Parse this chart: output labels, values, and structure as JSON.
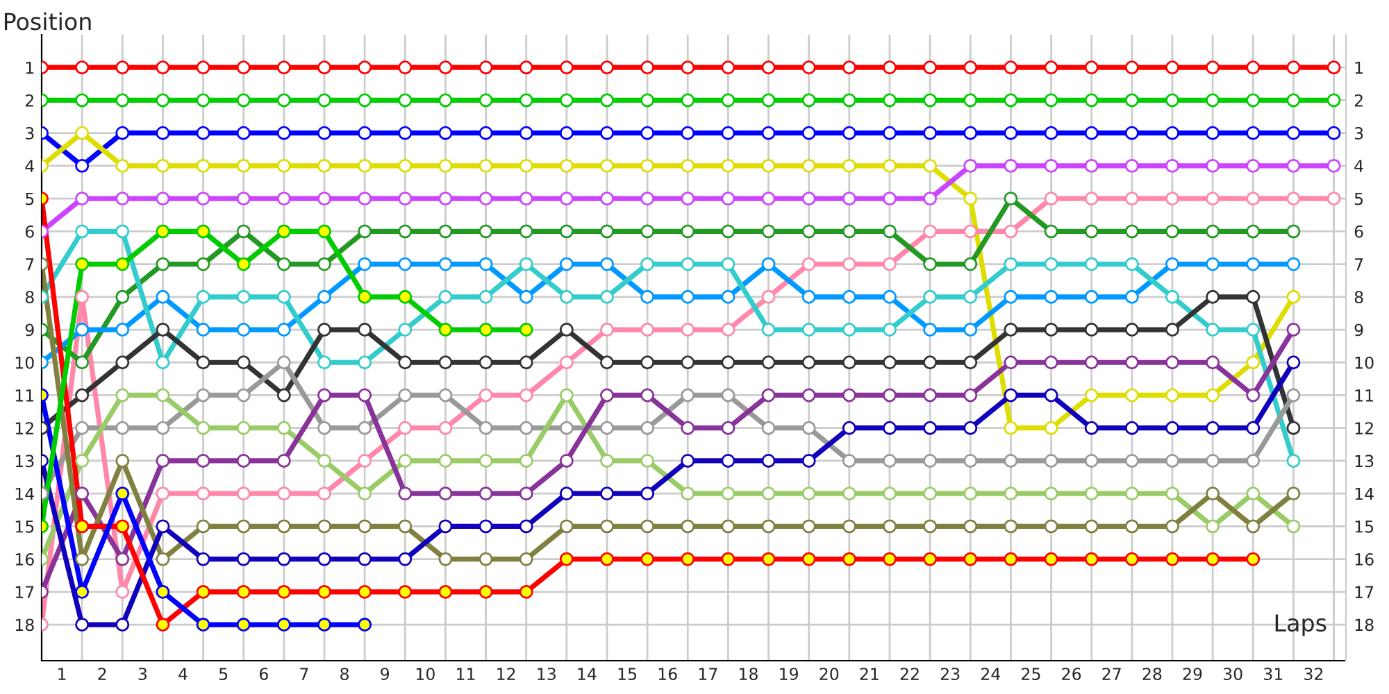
{
  "chart_data": {
    "type": "line",
    "xlabel": "Laps",
    "ylabel": "Position",
    "grid": true,
    "marker": "circle",
    "x": [
      0,
      1,
      2,
      3,
      4,
      5,
      6,
      7,
      8,
      9,
      10,
      11,
      12,
      13,
      14,
      15,
      16,
      17,
      18,
      19,
      20,
      21,
      22,
      23,
      24,
      25,
      26,
      27,
      28,
      29,
      30,
      31,
      32
    ],
    "xlim": [
      0,
      32.3
    ],
    "xticks": [
      {
        "value": 0.5,
        "label": "1"
      },
      {
        "value": 1.5,
        "label": "2"
      },
      {
        "value": 2.5,
        "label": "3"
      },
      {
        "value": 3.5,
        "label": "4"
      },
      {
        "value": 4.5,
        "label": "5"
      },
      {
        "value": 5.5,
        "label": "6"
      },
      {
        "value": 6.5,
        "label": "7"
      },
      {
        "value": 7.5,
        "label": "8"
      },
      {
        "value": 8.5,
        "label": "9"
      },
      {
        "value": 9.5,
        "label": "10"
      },
      {
        "value": 10.5,
        "label": "11"
      },
      {
        "value": 11.5,
        "label": "12"
      },
      {
        "value": 12.5,
        "label": "13"
      },
      {
        "value": 13.5,
        "label": "14"
      },
      {
        "value": 14.5,
        "label": "15"
      },
      {
        "value": 15.5,
        "label": "16"
      },
      {
        "value": 16.5,
        "label": "17"
      },
      {
        "value": 17.5,
        "label": "18"
      },
      {
        "value": 18.5,
        "label": "19"
      },
      {
        "value": 19.5,
        "label": "20"
      },
      {
        "value": 20.5,
        "label": "21"
      },
      {
        "value": 21.5,
        "label": "22"
      },
      {
        "value": 22.5,
        "label": "23"
      },
      {
        "value": 23.5,
        "label": "24"
      },
      {
        "value": 24.5,
        "label": "25"
      },
      {
        "value": 25.5,
        "label": "26"
      },
      {
        "value": 26.5,
        "label": "27"
      },
      {
        "value": 27.5,
        "label": "28"
      },
      {
        "value": 28.5,
        "label": "29"
      },
      {
        "value": 29.5,
        "label": "30"
      },
      {
        "value": 30.5,
        "label": "31"
      },
      {
        "value": 31.5,
        "label": "32"
      }
    ],
    "ylim": [
      19.1,
      0
    ],
    "yticks": [
      1,
      2,
      3,
      4,
      5,
      6,
      7,
      8,
      9,
      10,
      11,
      12,
      13,
      14,
      15,
      16,
      17,
      18
    ],
    "y2lim": [
      19.1,
      0
    ],
    "y2ticks": [
      1,
      2,
      3,
      4,
      5,
      6,
      7,
      8,
      9,
      10,
      11,
      12,
      13,
      14,
      15,
      16,
      17,
      18
    ],
    "series": [
      {
        "color": "#ff0000",
        "values": [
          1,
          1,
          1,
          1,
          1,
          1,
          1,
          1,
          1,
          1,
          1,
          1,
          1,
          1,
          1,
          1,
          1,
          1,
          1,
          1,
          1,
          1,
          1,
          1,
          1,
          1,
          1,
          1,
          1,
          1,
          1,
          1,
          1
        ]
      },
      {
        "color": "#00cc00",
        "values": [
          2,
          2,
          2,
          2,
          2,
          2,
          2,
          2,
          2,
          2,
          2,
          2,
          2,
          2,
          2,
          2,
          2,
          2,
          2,
          2,
          2,
          2,
          2,
          2,
          2,
          2,
          2,
          2,
          2,
          2,
          2,
          2,
          2
        ]
      },
      {
        "color": "#0000ff",
        "values": [
          3,
          4,
          3,
          3,
          3,
          3,
          3,
          3,
          3,
          3,
          3,
          3,
          3,
          3,
          3,
          3,
          3,
          3,
          3,
          3,
          3,
          3,
          3,
          3,
          3,
          3,
          3,
          3,
          3,
          3,
          3,
          3,
          3
        ]
      },
      {
        "color": "#dddd00",
        "values": [
          4,
          3,
          4,
          4,
          4,
          4,
          4,
          4,
          4,
          4,
          4,
          4,
          4,
          4,
          4,
          4,
          4,
          4,
          4,
          4,
          4,
          4,
          4,
          5,
          12,
          12,
          11,
          11,
          11,
          11,
          10,
          8,
          null
        ]
      },
      {
        "color": "#cc44ff",
        "values": [
          6,
          5,
          5,
          5,
          5,
          5,
          5,
          5,
          5,
          5,
          5,
          5,
          5,
          5,
          5,
          5,
          5,
          5,
          5,
          5,
          5,
          5,
          5,
          4,
          4,
          4,
          4,
          4,
          4,
          4,
          4,
          4,
          4
        ]
      },
      {
        "color": "#ff88aa",
        "values": [
          18,
          8,
          17,
          14,
          14,
          14,
          14,
          14,
          13,
          12,
          12,
          11,
          11,
          10,
          9,
          9,
          9,
          9,
          8,
          7,
          7,
          7,
          6,
          6,
          6,
          5,
          5,
          5,
          5,
          5,
          5,
          5,
          5
        ]
      },
      {
        "color": "#229922",
        "values": [
          9,
          10,
          8,
          7,
          7,
          6,
          7,
          7,
          6,
          6,
          6,
          6,
          6,
          6,
          6,
          6,
          6,
          6,
          6,
          6,
          6,
          6,
          7,
          7,
          5,
          6,
          6,
          6,
          6,
          6,
          6,
          6,
          null
        ]
      },
      {
        "color": "#0099ff",
        "values": [
          10,
          9,
          9,
          8,
          9,
          9,
          9,
          8,
          7,
          7,
          7,
          7,
          8,
          7,
          7,
          8,
          8,
          8,
          7,
          8,
          8,
          8,
          9,
          9,
          8,
          8,
          8,
          8,
          7,
          7,
          7,
          7,
          null
        ]
      },
      {
        "color": "#33cccc",
        "values": [
          8,
          6,
          6,
          10,
          8,
          8,
          8,
          10,
          10,
          9,
          8,
          8,
          7,
          8,
          8,
          7,
          7,
          7,
          9,
          9,
          9,
          9,
          8,
          8,
          7,
          7,
          7,
          7,
          8,
          9,
          9,
          13,
          null
        ]
      },
      {
        "color": "#333333",
        "values": [
          12,
          11,
          10,
          9,
          10,
          10,
          11,
          9,
          9,
          10,
          10,
          10,
          10,
          9,
          10,
          10,
          10,
          10,
          10,
          10,
          10,
          10,
          10,
          10,
          9,
          9,
          9,
          9,
          9,
          8,
          8,
          12,
          null
        ]
      },
      {
        "color": "#999999",
        "values": [
          14,
          12,
          12,
          12,
          11,
          11,
          10,
          12,
          12,
          11,
          11,
          12,
          12,
          12,
          12,
          12,
          11,
          11,
          12,
          12,
          13,
          13,
          13,
          13,
          13,
          13,
          13,
          13,
          13,
          13,
          13,
          11,
          null
        ]
      },
      {
        "color": "#99cc66",
        "values": [
          16,
          13,
          11,
          11,
          12,
          12,
          12,
          13,
          14,
          13,
          13,
          13,
          13,
          11,
          13,
          13,
          14,
          14,
          14,
          14,
          14,
          14,
          14,
          14,
          14,
          14,
          14,
          14,
          14,
          15,
          14,
          15,
          null
        ]
      },
      {
        "color": "#883399",
        "values": [
          17,
          14,
          16,
          13,
          13,
          13,
          13,
          11,
          11,
          14,
          14,
          14,
          14,
          13,
          11,
          11,
          12,
          12,
          11,
          11,
          11,
          11,
          11,
          11,
          10,
          10,
          10,
          10,
          10,
          10,
          11,
          9,
          null
        ]
      },
      {
        "color": "#808040",
        "values": [
          7,
          16,
          13,
          16,
          15,
          15,
          15,
          15,
          15,
          15,
          16,
          16,
          16,
          15,
          15,
          15,
          15,
          15,
          15,
          15,
          15,
          15,
          15,
          15,
          15,
          15,
          15,
          15,
          15,
          14,
          15,
          14,
          null
        ]
      },
      {
        "color": "#1100bb",
        "values": [
          13,
          18,
          18,
          15,
          16,
          16,
          16,
          16,
          16,
          16,
          15,
          15,
          15,
          14,
          14,
          14,
          13,
          13,
          13,
          13,
          12,
          12,
          12,
          12,
          11,
          11,
          12,
          12,
          12,
          12,
          12,
          10,
          null
        ]
      },
      {
        "color": "#ff0000",
        "values": [
          5,
          15,
          15,
          18,
          17,
          17,
          17,
          17,
          17,
          17,
          17,
          17,
          17,
          16,
          16,
          16,
          16,
          16,
          16,
          16,
          16,
          16,
          16,
          16,
          16,
          16,
          16,
          16,
          16,
          16,
          16,
          null,
          null
        ],
        "colors": [
          "#ffff00",
          "#ffff00",
          "#ffff00",
          "#ffff00",
          "#ffff00",
          "#ffff00",
          "#ffff00",
          "#ffff00",
          "#ffff00",
          "#ffff00",
          "#ffff00",
          "#ffff00",
          "#ffff00",
          "#ffff00",
          "#ffff00",
          "#ffff00",
          "#ffff00",
          "#ffff00",
          "#ffff00",
          "#ffff00",
          "#ffff00",
          "#ffff00",
          "#ffff00",
          "#ffff00",
          "#ffff00",
          "#ffff00",
          "#ffff00",
          "#ffff00",
          "#ffff00",
          "#ffff00",
          "#ffff00",
          null,
          null
        ]
      },
      {
        "color": "#0000ff",
        "values": [
          11,
          17,
          14,
          17,
          18,
          18,
          18,
          18,
          18,
          null,
          null,
          null,
          null,
          null,
          null,
          null,
          null,
          null,
          null,
          null,
          null,
          null,
          null,
          null,
          null,
          null,
          null,
          null,
          null,
          null,
          null,
          null,
          null
        ],
        "colors": [
          "#ffff00",
          "#ffff00",
          "#ffff00",
          "#ffff00",
          "#ffff00",
          "#ffff00",
          "#ffff00",
          "#ffff00",
          "#ffff00",
          null,
          null,
          null,
          null,
          null,
          null,
          null,
          null,
          null,
          null,
          null,
          null,
          null,
          null,
          null,
          null,
          null,
          null,
          null,
          null,
          null,
          null,
          null,
          null
        ]
      },
      {
        "color": "#00cc00",
        "values": [
          15,
          7,
          7,
          6,
          6,
          7,
          6,
          6,
          8,
          8,
          9,
          9,
          9,
          null,
          null,
          null,
          null,
          null,
          null,
          null,
          null,
          null,
          null,
          null,
          null,
          null,
          null,
          null,
          null,
          null,
          null,
          null,
          null
        ],
        "colors": [
          "#ffff00",
          "#ffff00",
          "#ffff00",
          "#ffff00",
          "#ffff00",
          "#ffff00",
          "#ffff00",
          "#ffff00",
          "#ffff00",
          "#ffff00",
          "#ffff00",
          "#ffff00",
          "#ffff00",
          null,
          null,
          null,
          null,
          null,
          null,
          null,
          null,
          null,
          null,
          null,
          null,
          null,
          null,
          null,
          null,
          null,
          null,
          null,
          null
        ]
      }
    ]
  }
}
